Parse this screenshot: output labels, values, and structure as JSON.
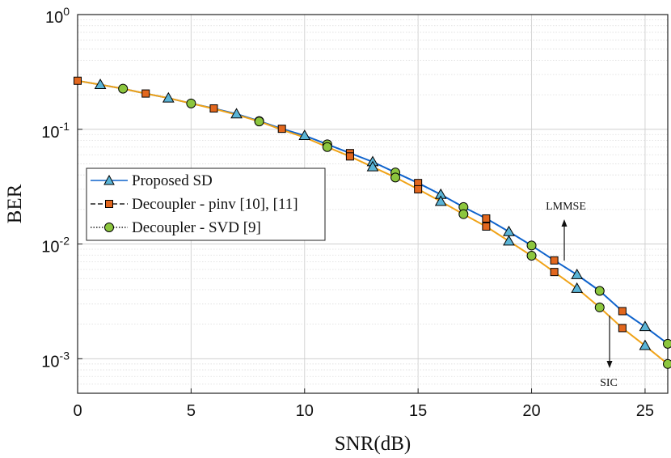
{
  "chart_data": {
    "type": "line",
    "xlabel": "SNR(dB)",
    "ylabel": "BER",
    "xlim": [
      0,
      26
    ],
    "ylim": [
      0.0005,
      1
    ],
    "yscale": "log",
    "grid": true,
    "xticks": [
      "0",
      "5",
      "10",
      "15",
      "20",
      "25"
    ],
    "yticks": [
      {
        "value": 1,
        "base": "10",
        "exp": "0"
      },
      {
        "value": 0.1,
        "base": "10",
        "exp": "-1"
      },
      {
        "value": 0.01,
        "base": "10",
        "exp": "-2"
      },
      {
        "value": 0.001,
        "base": "10",
        "exp": "-3"
      }
    ],
    "legend_position": "center-left",
    "legend": [
      "Proposed SD",
      "Decoupler - pinv [10], [11]",
      "Decoupler - SVD [9]"
    ],
    "annotations": [
      "LMMSE",
      "SIC"
    ],
    "colors": {
      "lmmse_line": "#0f63cc",
      "sic_line": "#f0a318",
      "triangle": "#5ab4d6",
      "square": "#e2671e",
      "circle": "#8cc63e"
    },
    "series": [
      {
        "name": "LMMSE",
        "marker_group": "curve",
        "x": [
          0,
          1,
          2,
          3,
          4,
          5,
          6,
          7,
          8,
          9,
          10,
          11,
          12,
          13,
          14,
          15,
          16,
          17,
          18,
          19,
          20,
          21,
          22,
          23,
          24,
          25,
          26
        ],
        "y": [
          0.265,
          0.245,
          0.226,
          0.205,
          0.187,
          0.168,
          0.152,
          0.136,
          0.118,
          0.101,
          0.088,
          0.074,
          0.062,
          0.052,
          0.042,
          0.034,
          0.027,
          0.021,
          0.0167,
          0.0128,
          0.0097,
          0.0072,
          0.0054,
          0.0039,
          0.0026,
          0.0019,
          0.00135
        ]
      },
      {
        "name": "SIC",
        "marker_group": "curve",
        "x": [
          0,
          1,
          2,
          3,
          4,
          5,
          6,
          7,
          8,
          9,
          10,
          11,
          12,
          13,
          14,
          15,
          16,
          17,
          18,
          19,
          20,
          21,
          22,
          23,
          24,
          25,
          26
        ],
        "y": [
          0.265,
          0.245,
          0.226,
          0.205,
          0.187,
          0.168,
          0.151,
          0.134,
          0.117,
          0.099,
          0.085,
          0.07,
          0.058,
          0.047,
          0.038,
          0.03,
          0.0235,
          0.0182,
          0.0142,
          0.0106,
          0.0079,
          0.0057,
          0.0041,
          0.0028,
          0.00185,
          0.0013,
          0.0009
        ]
      },
      {
        "name": "Proposed SD",
        "marker": "triangle",
        "x": [
          1,
          4,
          7,
          10,
          13,
          16,
          19,
          22,
          25,
          13,
          16,
          19,
          22,
          25
        ],
        "y": [
          0.245,
          0.187,
          0.136,
          0.088,
          0.052,
          0.027,
          0.0128,
          0.0054,
          0.0019,
          0.047,
          0.0235,
          0.0106,
          0.0041,
          0.0013
        ]
      },
      {
        "name": "Decoupler - pinv [10], [11]",
        "marker": "square",
        "x": [
          0,
          3,
          6,
          9,
          12,
          15,
          18,
          21,
          24,
          12,
          15,
          18,
          21,
          24
        ],
        "y": [
          0.265,
          0.205,
          0.152,
          0.101,
          0.062,
          0.034,
          0.0167,
          0.0072,
          0.0026,
          0.058,
          0.03,
          0.0142,
          0.0057,
          0.00185
        ]
      },
      {
        "name": "Decoupler - SVD [9]",
        "marker": "circle",
        "x": [
          2,
          5,
          8,
          11,
          14,
          17,
          20,
          23,
          26,
          8,
          11,
          14,
          17,
          20,
          23,
          26
        ],
        "y": [
          0.226,
          0.168,
          0.118,
          0.074,
          0.042,
          0.021,
          0.0097,
          0.0039,
          0.00135,
          0.117,
          0.07,
          0.038,
          0.0182,
          0.0079,
          0.0028,
          0.0009
        ]
      }
    ]
  }
}
